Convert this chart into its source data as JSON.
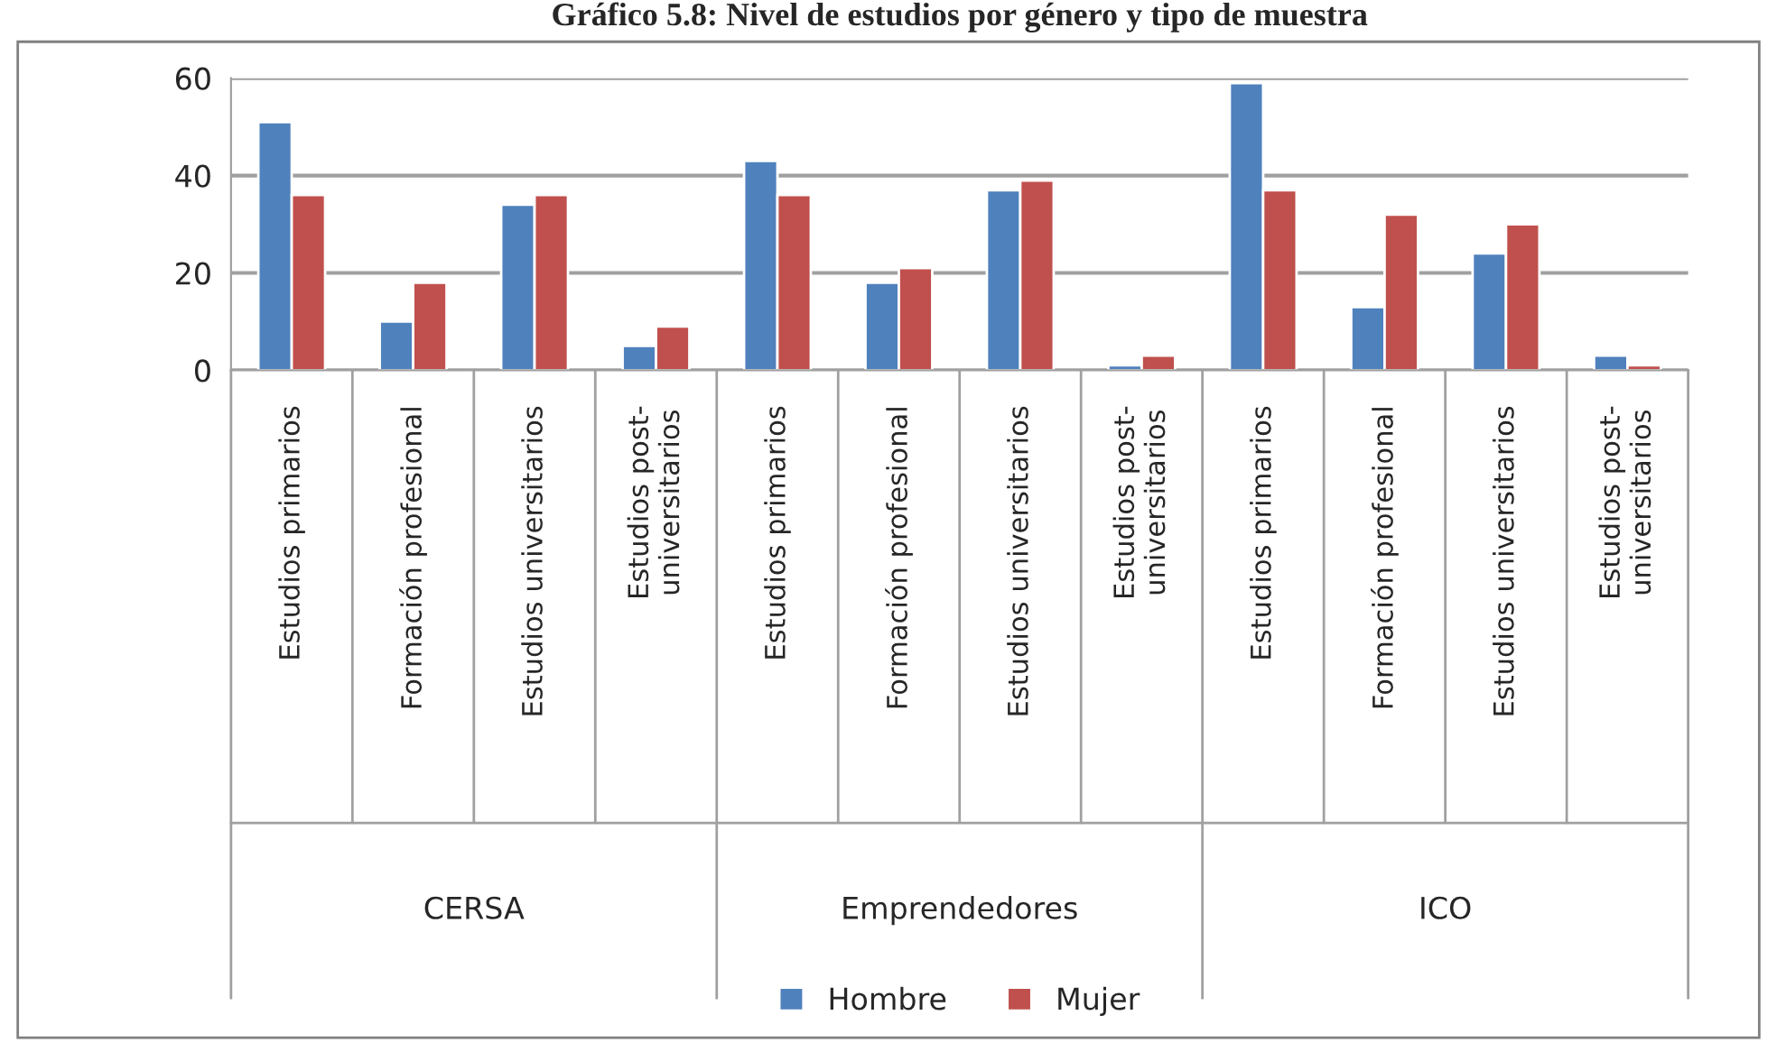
{
  "chart_data": {
    "type": "bar",
    "title": "Gráfico 5.8: Nivel de estudios por género y tipo de muestra",
    "categories": [
      "Estudios primarios",
      "Formación profesional",
      "Estudios universitarios",
      "Estudios post-\nuniversitarios",
      "Estudios primarios",
      "Formación profesional",
      "Estudios universitarios",
      "Estudios post-\nuniversitarios",
      "Estudios primarios",
      "Formación profesional",
      "Estudios universitarios",
      "Estudios post-\nuniversitarios"
    ],
    "annotations": [
      "CERSA",
      "Emprendedores",
      "ICO"
    ],
    "series": [
      {
        "name": "Hombre",
        "color": "#4f81bd",
        "values": [
          51,
          10,
          34,
          5,
          43,
          18,
          37,
          1,
          59,
          13,
          24,
          3
        ]
      },
      {
        "name": "Mujer",
        "color": "#c0504d",
        "values": [
          36,
          18,
          36,
          9,
          36,
          21,
          39,
          3,
          37,
          32,
          30,
          1
        ]
      }
    ],
    "ylim": [
      0,
      60
    ],
    "yticks": [
      0,
      20,
      40,
      60
    ],
    "grid": "y",
    "legend": "bottom"
  }
}
